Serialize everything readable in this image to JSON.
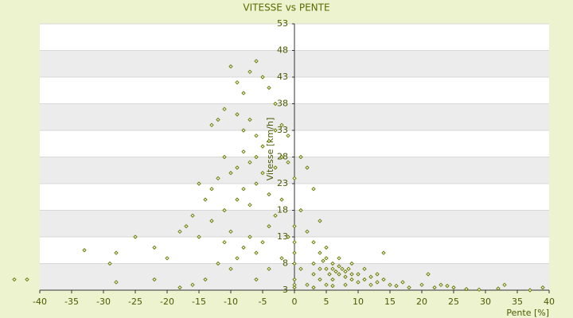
{
  "chart_data": {
    "type": "scatter",
    "title": "VITESSE vs PENTE",
    "x_label": "Pente [%]",
    "y_label": "Vitesse [km/h]",
    "xlim": [
      -40,
      40
    ],
    "ylim": [
      3,
      53
    ],
    "xticks": [
      -40,
      -35,
      -30,
      -25,
      -20,
      -15,
      -10,
      -5,
      0,
      5,
      10,
      15,
      20,
      25,
      30,
      35,
      40
    ],
    "yticks": [
      3,
      8,
      13,
      18,
      23,
      28,
      33,
      38,
      43,
      48,
      53
    ],
    "grid": true,
    "color": "#6b7a00",
    "x": [
      -10,
      -9,
      -8,
      -7,
      -6,
      -5,
      -4,
      -3,
      -11,
      -12,
      -13,
      -9,
      -8,
      -7,
      -6,
      -5,
      -4,
      -3,
      -2,
      -1,
      -6,
      -7,
      -8,
      -9,
      -10,
      -11,
      -12,
      -13,
      -14,
      -15,
      -16,
      -17,
      -18,
      -15,
      -13,
      -11,
      -10,
      -9,
      -8,
      -7,
      -6,
      -5,
      -4,
      -3,
      -2,
      -1,
      0,
      -2,
      -3,
      -4,
      -5,
      -6,
      -7,
      -8,
      -9,
      -10,
      -11,
      -12,
      -14,
      -16,
      -18,
      -20,
      -22,
      -25,
      -28,
      -33,
      -42,
      -44,
      -29,
      -28,
      -22,
      -6,
      -4,
      -2,
      -1,
      0,
      1,
      2,
      3,
      1,
      2,
      3,
      4,
      4,
      3,
      4,
      4.5,
      5,
      5,
      5.5,
      6,
      6,
      6.5,
      7,
      7,
      7.5,
      8,
      8,
      8.5,
      9,
      9,
      10,
      10,
      11,
      12,
      12,
      13,
      14,
      14,
      15,
      16,
      17,
      18,
      20,
      21,
      22,
      23,
      24,
      25,
      27,
      29,
      32,
      33,
      37,
      39,
      2,
      3,
      5,
      6,
      8,
      4,
      6,
      3,
      5,
      7,
      9,
      11,
      13,
      1,
      0,
      0,
      0,
      0,
      0,
      0
    ],
    "values": [
      45,
      42,
      40,
      44,
      46,
      43,
      41,
      38,
      37,
      35,
      34,
      36,
      33,
      35,
      32,
      30,
      31,
      33,
      34,
      32,
      28,
      27,
      29,
      26,
      25,
      28,
      24,
      22,
      20,
      23,
      17,
      15,
      14,
      13,
      16,
      18,
      14,
      20,
      22,
      19,
      23,
      25,
      21,
      26,
      28,
      27,
      24,
      20,
      17,
      15,
      12,
      10,
      13,
      11,
      9,
      7,
      12,
      8,
      5,
      4,
      3.5,
      9,
      11,
      13,
      10,
      10.5,
      5,
      5,
      8,
      4.5,
      5,
      5,
      7,
      9,
      13,
      15,
      28,
      26,
      22,
      18,
      14,
      12,
      16,
      10,
      8,
      7,
      8.5,
      9,
      7,
      6,
      8,
      7,
      6.5,
      7.5,
      6,
      7,
      6.5,
      5.5,
      7,
      6,
      5,
      6,
      4.5,
      5,
      5.5,
      4,
      4.5,
      5,
      10,
      4,
      3.8,
      4.5,
      3.5,
      4,
      6,
      3.5,
      4,
      3.8,
      3.5,
      3.2,
      3.1,
      3.3,
      4,
      3,
      3.5,
      4,
      3.5,
      4,
      3.8,
      4,
      5,
      5,
      6,
      11,
      9,
      8,
      7,
      6,
      7,
      5,
      8,
      10,
      12,
      4,
      3.5
    ]
  }
}
